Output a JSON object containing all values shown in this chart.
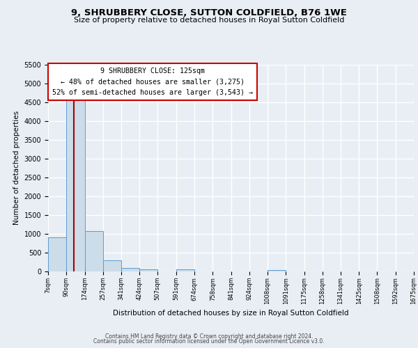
{
  "title": "9, SHRUBBERY CLOSE, SUTTON COLDFIELD, B76 1WE",
  "subtitle": "Size of property relative to detached houses in Royal Sutton Coldfield",
  "xlabel": "Distribution of detached houses by size in Royal Sutton Coldfield",
  "ylabel": "Number of detached properties",
  "bar_edges": [
    7,
    90,
    174,
    257,
    341,
    424,
    507,
    591,
    674,
    758,
    841,
    924,
    1008,
    1091,
    1175,
    1258,
    1341,
    1425,
    1508,
    1592,
    1675
  ],
  "bar_heights": [
    900,
    4580,
    1070,
    295,
    90,
    55,
    0,
    50,
    0,
    0,
    0,
    0,
    30,
    0,
    0,
    0,
    0,
    0,
    0,
    0
  ],
  "bar_color": "#ccdce9",
  "bar_edge_color": "#5b9bd5",
  "property_line_x": 125,
  "property_line_color": "#aa0000",
  "ylim": [
    0,
    5500
  ],
  "yticks": [
    0,
    500,
    1000,
    1500,
    2000,
    2500,
    3000,
    3500,
    4000,
    4500,
    5000,
    5500
  ],
  "annotation_title": "9 SHRUBBERY CLOSE: 125sqm",
  "annotation_line1": "← 48% of detached houses are smaller (3,275)",
  "annotation_line2": "52% of semi-detached houses are larger (3,543) →",
  "annotation_box_facecolor": "#ffffff",
  "annotation_box_edgecolor": "#cc0000",
  "footer_line1": "Contains HM Land Registry data © Crown copyright and database right 2024.",
  "footer_line2": "Contains public sector information licensed under the Open Government Licence v3.0.",
  "background_color": "#e8eef4",
  "plot_background_color": "#e8eef4",
  "grid_color": "#ffffff",
  "tick_labels": [
    "7sqm",
    "90sqm",
    "174sqm",
    "257sqm",
    "341sqm",
    "424sqm",
    "507sqm",
    "591sqm",
    "674sqm",
    "758sqm",
    "841sqm",
    "924sqm",
    "1008sqm",
    "1091sqm",
    "1175sqm",
    "1258sqm",
    "1341sqm",
    "1425sqm",
    "1508sqm",
    "1592sqm",
    "1675sqm"
  ]
}
